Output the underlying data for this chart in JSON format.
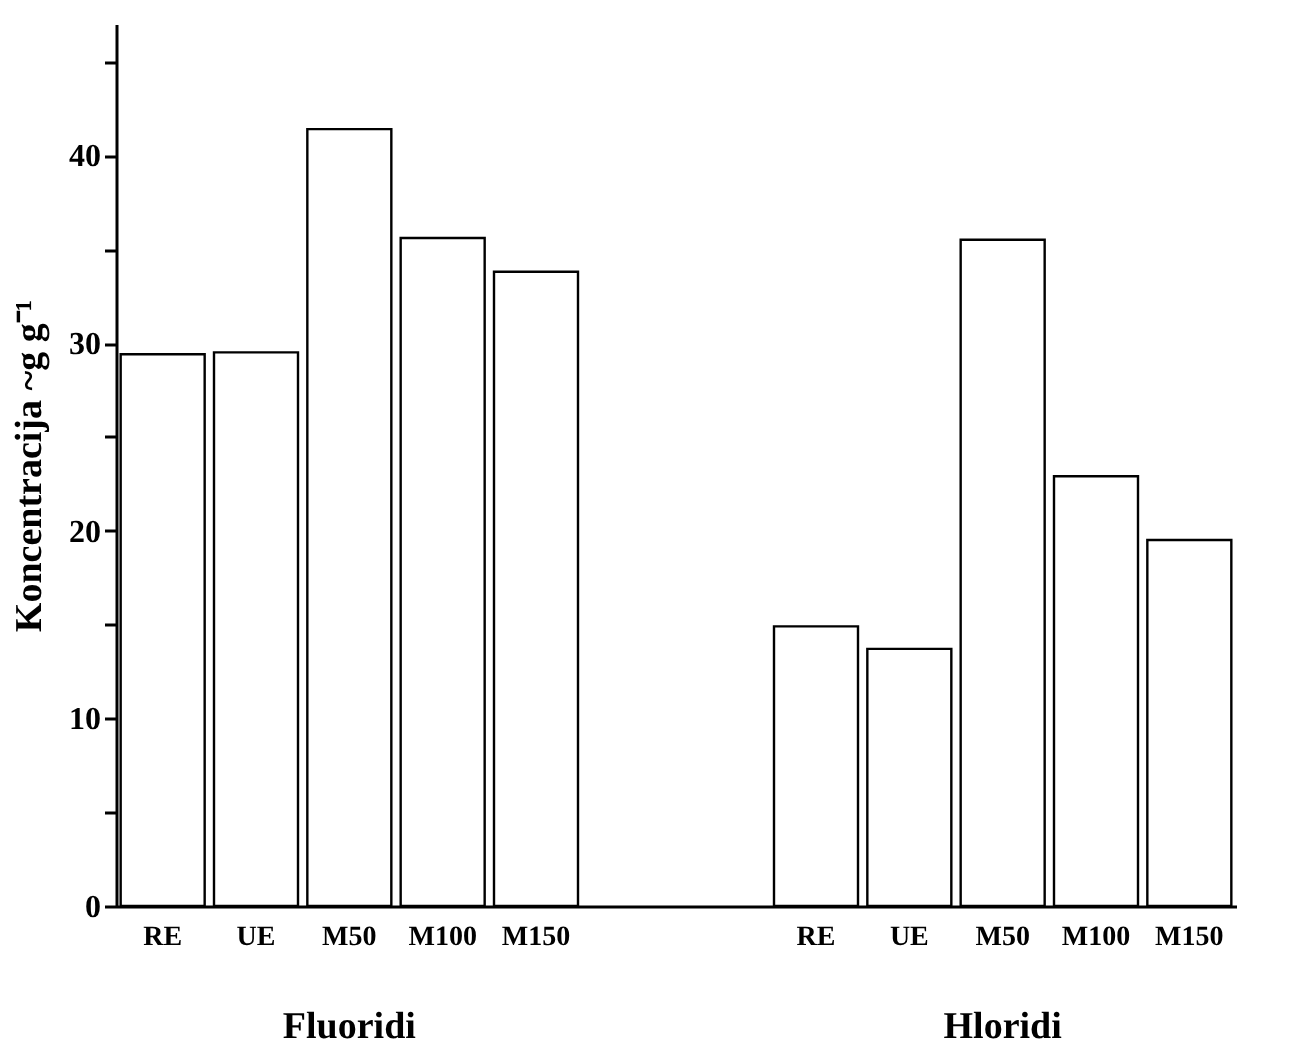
{
  "chart_data": {
    "type": "bar",
    "ylabel": "Koncentracija ~g g⁻¹",
    "categories": [
      "RE",
      "UE",
      "M50",
      "M100",
      "M150",
      null,
      null,
      "RE",
      "UE",
      "M50",
      "M100",
      "M150"
    ],
    "values": [
      29.4,
      29.5,
      41.4,
      35.6,
      33.8,
      null,
      null,
      14.9,
      13.7,
      35.5,
      22.9,
      19.5
    ],
    "color": "#ffffff",
    "ylim": [
      0,
      47
    ],
    "yticks": [
      0,
      {
        "value": 5,
        "label": null
      },
      10,
      {
        "value": 15,
        "label": null
      },
      20,
      {
        "value": 25,
        "label": null
      },
      30,
      {
        "value": 35,
        "label": null
      },
      40,
      {
        "value": 45,
        "label": null
      }
    ],
    "annotations": [
      "Fluoridi",
      "Hloridi"
    ],
    "grid": false
  }
}
